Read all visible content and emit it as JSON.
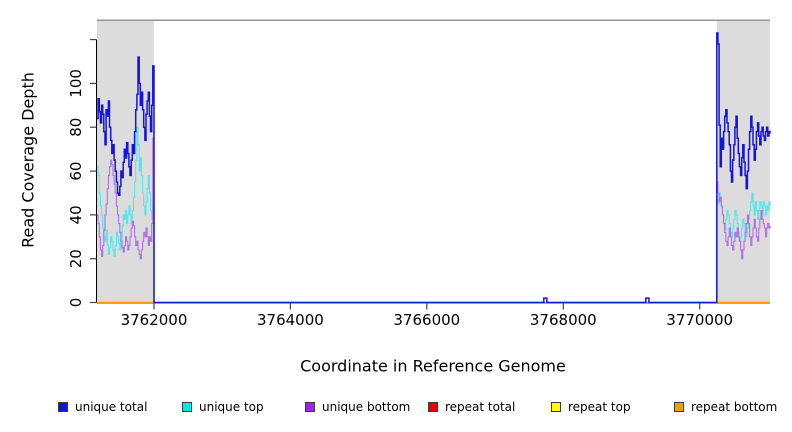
{
  "chart_data": {
    "type": "line",
    "title": "",
    "xlabel": "Coordinate in Reference Genome",
    "ylabel": "Read Coverage Depth",
    "xlim": [
      3761165,
      3771030
    ],
    "ylim": [
      0,
      128.5
    ],
    "xticks": [
      3762000,
      3764000,
      3766000,
      3768000,
      3770000
    ],
    "yticks": [
      0,
      20,
      40,
      60,
      80,
      100,
      120
    ],
    "ytick_labels": [
      "0",
      "20",
      "40",
      "60",
      "80",
      "100",
      ""
    ],
    "grid": false,
    "legend_position": "bottom",
    "top_border_color": "#949494",
    "shaded_regions": [
      {
        "label": "repeat-region-left",
        "x0": 3761165,
        "x1": 3762000,
        "color": "#dcdcdc"
      },
      {
        "label": "repeat-region-right",
        "x0": 3770250,
        "x1": 3771030,
        "color": "#dcdcdc"
      }
    ],
    "series": [
      {
        "id": "repeat-total",
        "name": "repeat total",
        "color": "#e60000",
        "width": 1,
        "segments": [
          {
            "points": [
              [
                3761165,
                0
              ],
              [
                3771030,
                0
              ]
            ]
          }
        ]
      },
      {
        "id": "repeat-top",
        "name": "repeat top",
        "color": "#ffff00",
        "width": 1,
        "segments": [
          {
            "points": [
              [
                3761165,
                0
              ],
              [
                3771030,
                0
              ]
            ]
          }
        ]
      },
      {
        "id": "repeat-bottom",
        "name": "repeat bottom",
        "color": "#ff9d00",
        "width": 1.6,
        "segments": [
          {
            "points": [
              [
                3761165,
                0
              ],
              [
                3771030,
                0
              ]
            ]
          }
        ]
      },
      {
        "id": "unique-top",
        "name": "unique top",
        "color": "#55e6ea",
        "width": 1.1,
        "segments": [
          {
            "x0": 3761165,
            "dx": 16.7,
            "values": [
              62,
              58,
              50,
              44,
              40,
              34,
              30,
              28,
              33,
              26,
              22,
              25,
              30,
              28,
              24,
              21,
              26,
              32,
              30,
              27,
              24,
              28,
              35,
              40,
              38,
              42,
              36,
              40,
              44,
              40,
              36,
              42,
              48,
              55,
              65,
              80,
              72,
              60,
              66,
              58,
              50,
              44,
              40,
              46,
              52,
              58,
              50,
              42,
              38,
              45,
              42
            ]
          },
          {
            "points": [
              [
                3762000,
                0
              ],
              [
                3770250,
                0
              ]
            ]
          },
          {
            "x0": 3770250,
            "dx": 16.6,
            "values": [
              47,
              45,
              50,
              47,
              44,
              40,
              36,
              33,
              38,
              42,
              40,
              36,
              32,
              30,
              34,
              38,
              42,
              40,
              36,
              32,
              28,
              30,
              34,
              38,
              36,
              32,
              30,
              34,
              38,
              42,
              46,
              50,
              44,
              40,
              46,
              42,
              38,
              42,
              46,
              44,
              40,
              46,
              44,
              40,
              44,
              42,
              46,
              44
            ]
          }
        ]
      },
      {
        "id": "unique-bottom",
        "name": "unique bottom",
        "color": "#b26fe3",
        "width": 1.1,
        "segments": [
          {
            "x0": 3761165,
            "dx": 16.7,
            "values": [
              40,
              36,
              30,
              24,
              21,
              26,
              33,
              40,
              45,
              52,
              58,
              62,
              65,
              63,
              58,
              54,
              50,
              44,
              40,
              36,
              32,
              28,
              25,
              23,
              26,
              30,
              28,
              24,
              26,
              30,
              34,
              37,
              35,
              30,
              26,
              28,
              24,
              22,
              20,
              24,
              28,
              32,
              30,
              34,
              30,
              26,
              30,
              28,
              36,
              75,
              74
            ]
          },
          {
            "points": [
              [
                3762000,
                0
              ],
              [
                3770250,
                0
              ]
            ]
          },
          {
            "x0": 3770250,
            "dx": 16.6,
            "values": [
              55,
              50,
              46,
              48,
              44,
              40,
              36,
              32,
              28,
              26,
              30,
              34,
              30,
              26,
              24,
              28,
              32,
              30,
              34,
              30,
              28,
              24,
              20,
              24,
              28,
              32,
              36,
              40,
              36,
              30,
              26,
              30,
              34,
              38,
              34,
              30,
              28,
              34,
              38,
              42,
              38,
              36,
              34,
              30,
              34,
              36,
              34,
              35
            ]
          }
        ]
      },
      {
        "id": "unique-total",
        "name": "unique total",
        "color": "#1414dd",
        "width": 1.5,
        "segments": [
          {
            "x0": 3761165,
            "dx": 16.7,
            "values": [
              84,
              93,
              87,
              82,
              90,
              86,
              78,
              72,
              88,
              85,
              92,
              80,
              74,
              68,
              72,
              65,
              60,
              55,
              50,
              49,
              53,
              60,
              57,
              64,
              70,
              66,
              73,
              68,
              62,
              58,
              65,
              72,
              68,
              78,
              88,
              95,
              112,
              100,
              90,
              96,
              88,
              80,
              74,
              86,
              92,
              96,
              85,
              78,
              90,
              108,
              78
            ]
          },
          {
            "points": [
              [
                3762000,
                0
              ],
              [
                3767715,
                0
              ],
              [
                3767715,
                2
              ],
              [
                3767760,
                2
              ],
              [
                3767760,
                0
              ],
              [
                3769210,
                0
              ],
              [
                3769210,
                2
              ],
              [
                3769255,
                2
              ],
              [
                3769255,
                0
              ],
              [
                3770250,
                0
              ]
            ]
          },
          {
            "x0": 3770250,
            "dx": 16.6,
            "values": [
              123,
              118,
              81,
              62,
              75,
              70,
              78,
              85,
              88,
              82,
              78,
              72,
              60,
              55,
              65,
              72,
              80,
              85,
              75,
              68,
              62,
              58,
              66,
              72,
              64,
              58,
              52,
              60,
              70,
              78,
              85,
              80,
              72,
              65,
              70,
              78,
              82,
              76,
              72,
              78,
              80,
              76,
              74,
              78,
              80,
              76,
              78,
              77
            ]
          }
        ]
      }
    ]
  },
  "legend": {
    "items": [
      {
        "label": "unique total",
        "color": "#1010e8"
      },
      {
        "label": "unique top",
        "color": "#00e5ee"
      },
      {
        "label": "unique bottom",
        "color": "#a020f0"
      },
      {
        "label": "repeat total",
        "color": "#e60000"
      },
      {
        "label": "repeat top",
        "color": "#ffff00"
      },
      {
        "label": "repeat bottom",
        "color": "#ff9d00"
      }
    ]
  }
}
